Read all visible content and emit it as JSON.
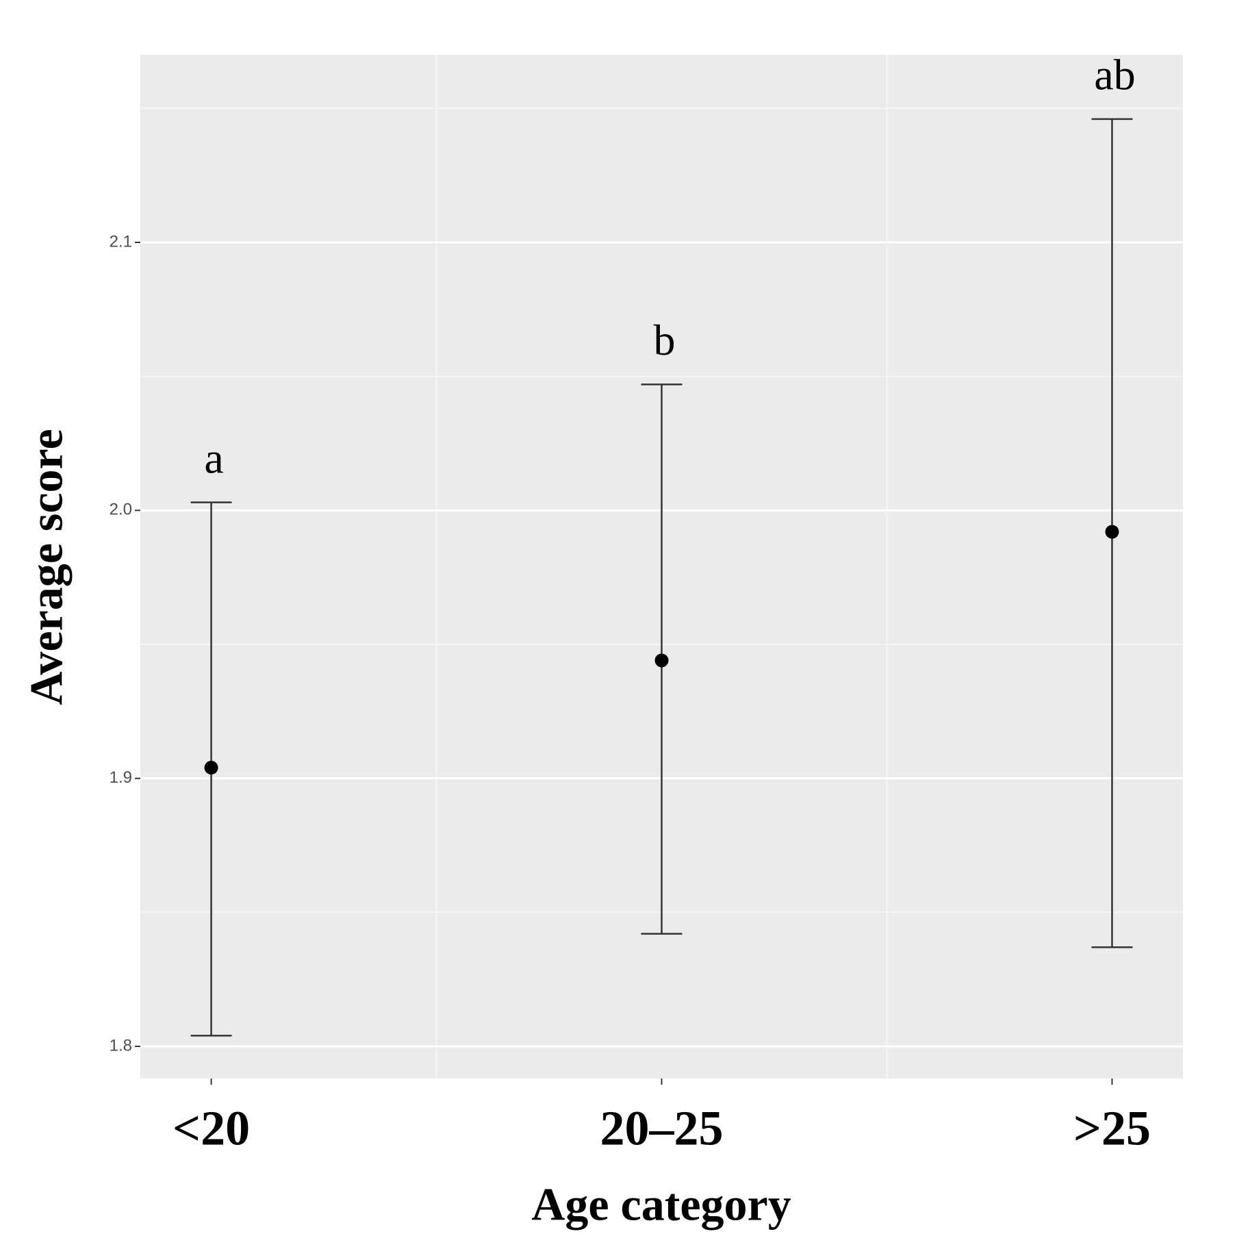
{
  "chart_data": {
    "type": "errorbar",
    "x_label": "Age category",
    "y_label": "Average score",
    "categories": [
      "<20",
      "20–25",
      ">25"
    ],
    "values": [
      1.904,
      1.944,
      1.992
    ],
    "ymin": [
      1.804,
      1.842,
      1.837
    ],
    "ymax": [
      2.003,
      2.047,
      2.146
    ],
    "letters": [
      "a",
      "b",
      "ab"
    ],
    "color": "#000000",
    "bar_color": "#333333",
    "ylim": [
      1.788,
      2.17
    ],
    "yticks": [
      {
        "value": 1.8,
        "label": "1.8"
      },
      {
        "value": 1.9,
        "label": "1.9"
      },
      {
        "value": 2.0,
        "label": "2.0"
      },
      {
        "value": 2.1,
        "label": "2.1"
      }
    ],
    "y_minor_gridlines": [
      1.85,
      1.95,
      2.05,
      2.15
    ],
    "grid": true
  }
}
